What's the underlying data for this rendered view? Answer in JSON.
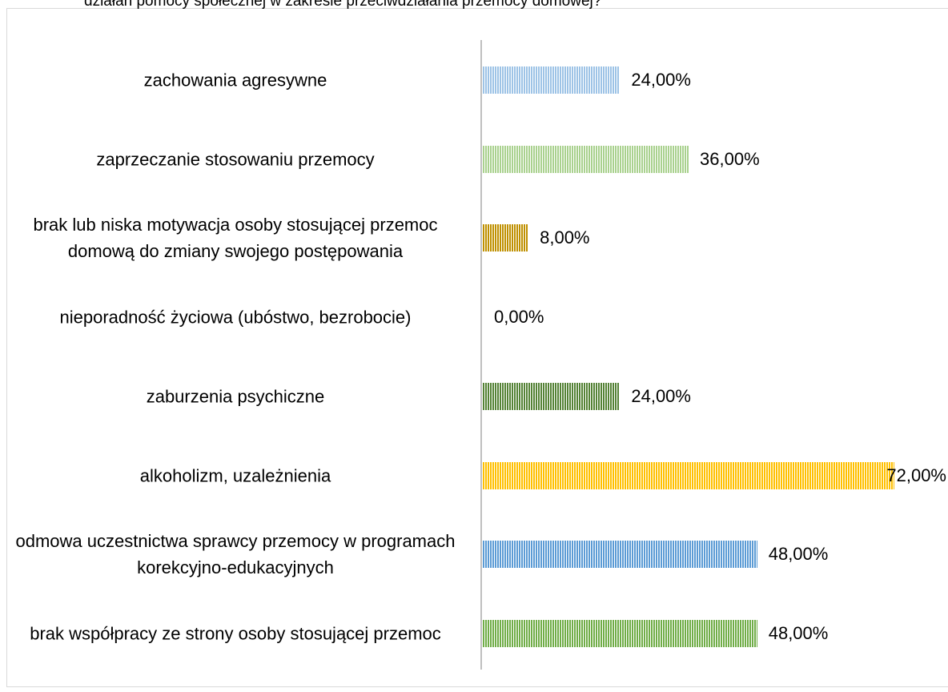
{
  "chart_data": {
    "type": "bar",
    "orientation": "horizontal",
    "title": "działań pomocy społecznej w zakresie przeciwdziałania przemocy domowej?",
    "categories": [
      "zachowania agresywne",
      "zaprzeczanie stosowaniu przemocy",
      "brak lub niska motywacja osoby stosującej przemoc domową do zmiany swojego postępowania",
      "nieporadność życiowa (ubóstwo, bezrobocie)",
      "zaburzenia psychiczne",
      "alkoholizm, uzależnienia",
      "odmowa uczestnictwa sprawcy przemocy w programach korekcyjno-edukacyjnych",
      "brak współpracy ze strony osoby stosującej przemoc"
    ],
    "values": [
      24,
      36,
      8,
      0,
      24,
      72,
      48,
      48
    ],
    "value_labels": [
      "24,00%",
      "36,00%",
      "8,00%",
      "0,00%",
      "24,00%",
      "72,00%",
      "48,00%",
      "48,00%"
    ],
    "colors": [
      "#9dc3e6",
      "#a9d18e",
      "#bf9000",
      "#7f7f7f",
      "#548235",
      "#ffc000",
      "#5b9bd5",
      "#70ad47"
    ]
  }
}
